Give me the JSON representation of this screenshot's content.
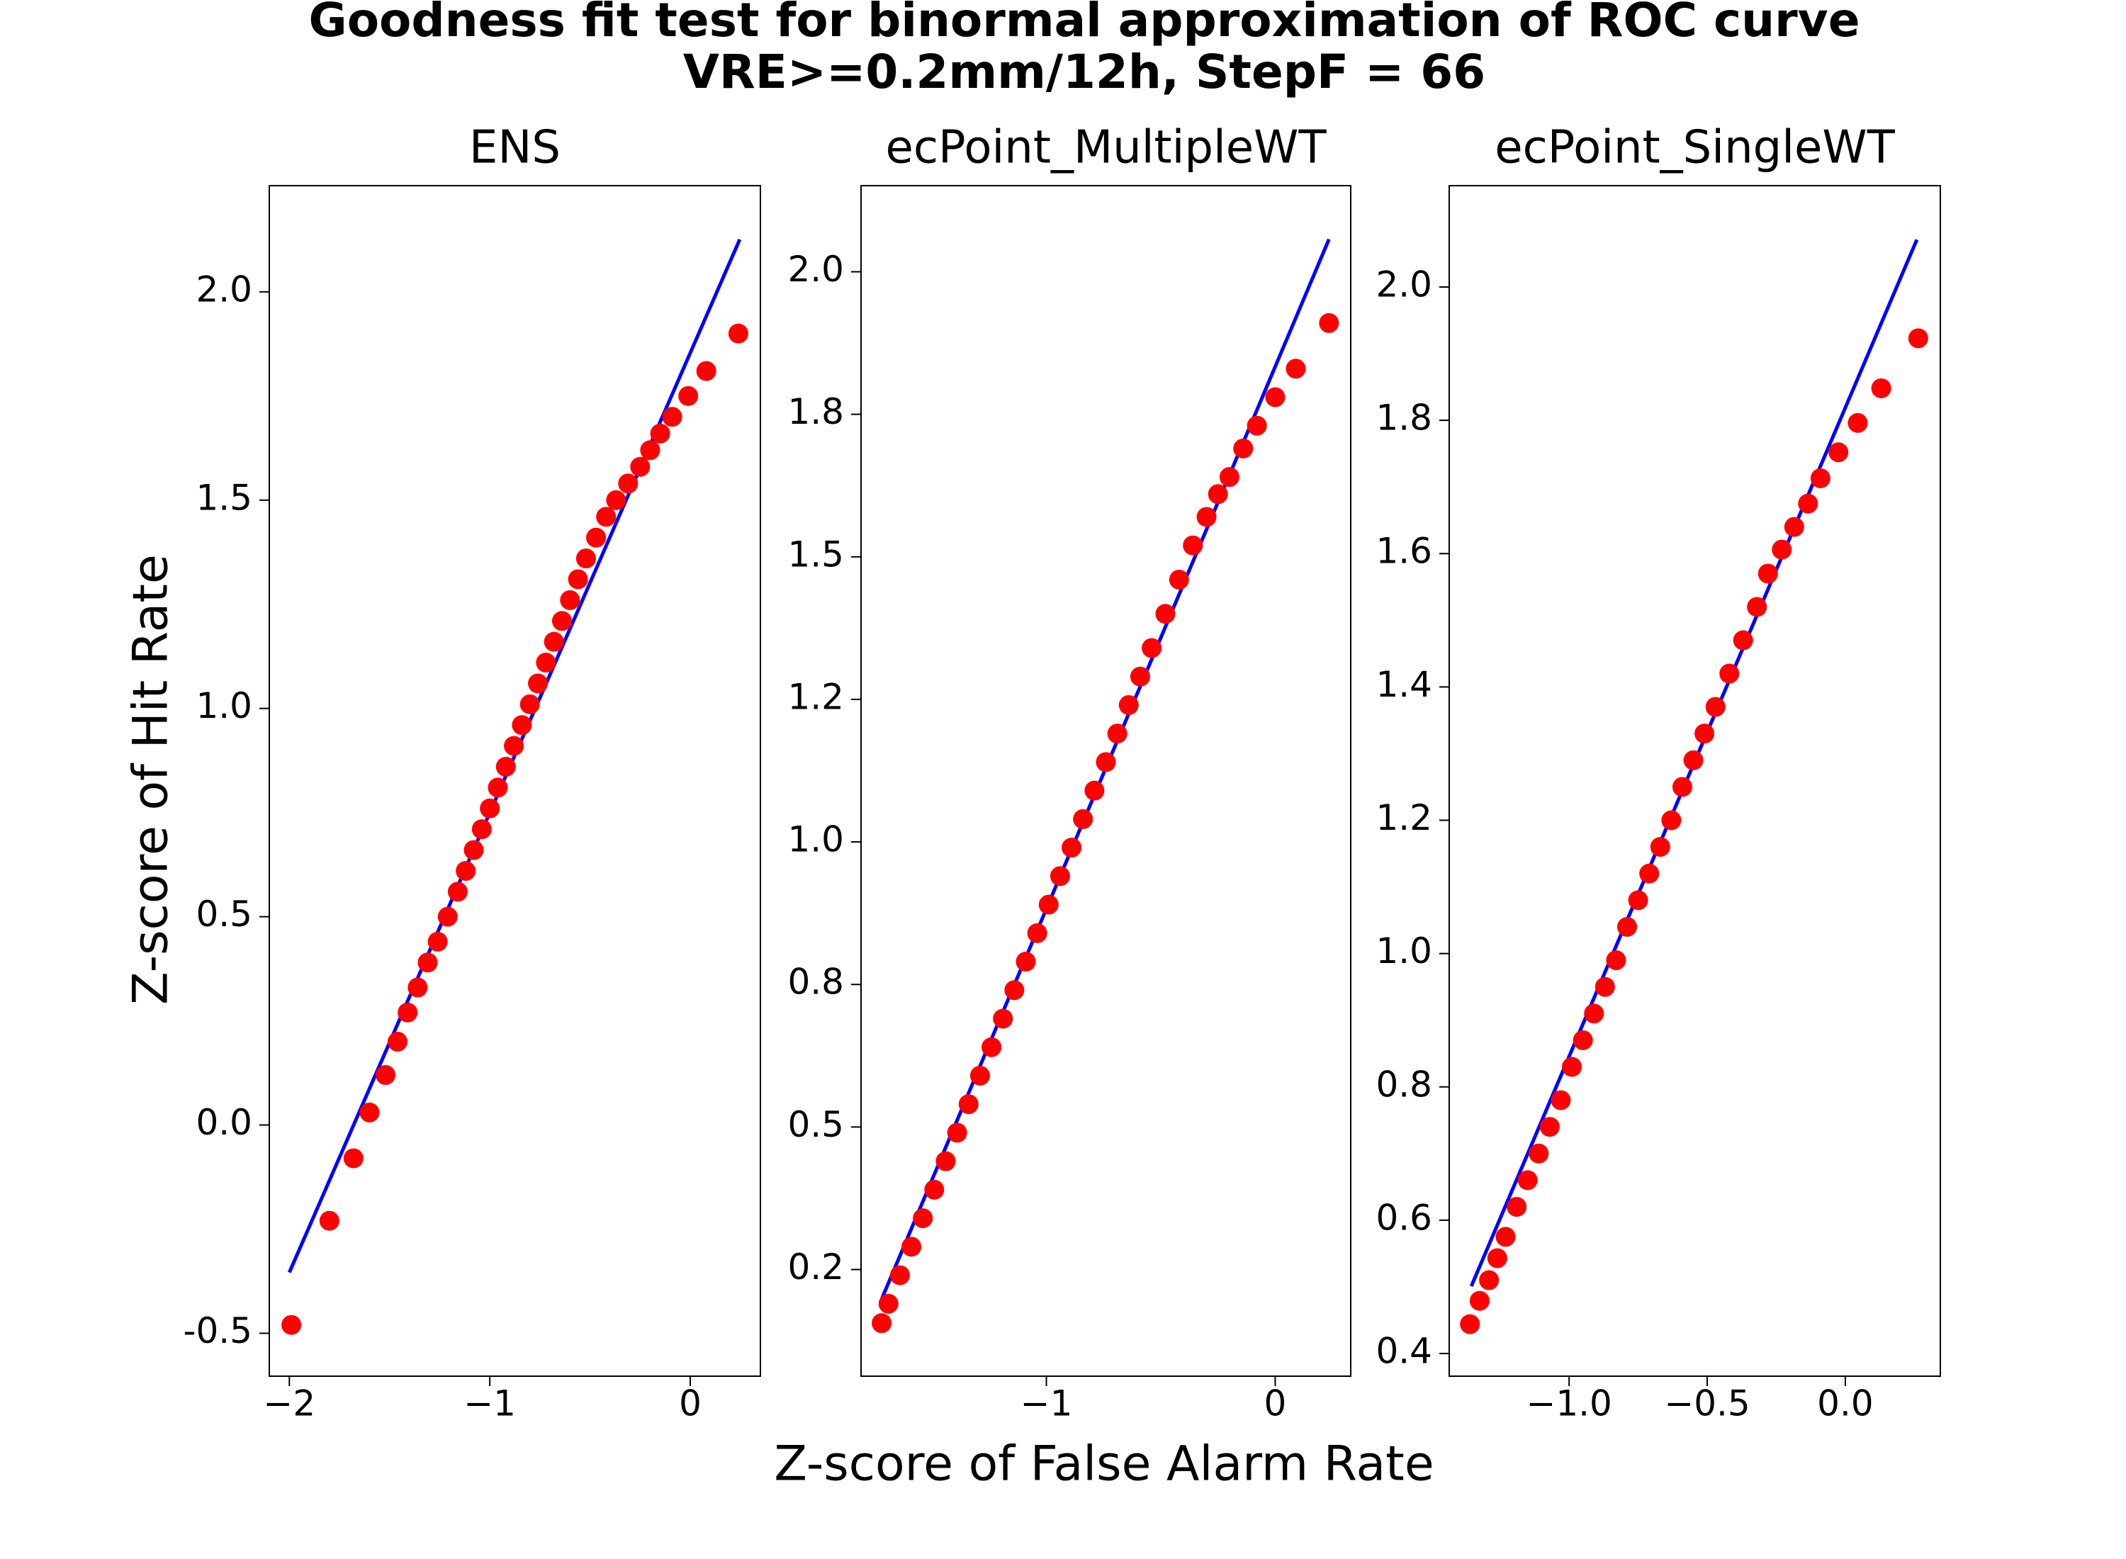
{
  "title": "Goodness fit test for binormal approximation of ROC curve",
  "subtitle": "VRE>=0.2mm/12h, StepF = 66",
  "x_label": "Z-score of False Alarm Rate",
  "y_label": "Z-score of Hit Rate",
  "chart_data": [
    {
      "type": "scatter",
      "title": "ENS",
      "xlim": [
        -2.1,
        0.35
      ],
      "ylim": [
        -0.603,
        2.255
      ],
      "xticks": [
        {
          "value": -2,
          "label": "−2"
        },
        {
          "value": -1,
          "label": "−1"
        },
        0
      ],
      "yticks": [
        {
          "value": -0.5,
          "label": "-0.5"
        },
        {
          "value": 0,
          "label": "0.0"
        },
        0.5,
        {
          "value": 1,
          "label": "1.0"
        },
        1.5,
        {
          "value": 2,
          "label": "2.0"
        }
      ],
      "series": [
        {
          "type": "line",
          "color": "#0000ff",
          "x": [
            -2.0,
            0.247
          ],
          "values": [
            -0.354,
            2.126
          ]
        },
        {
          "type": "scatter",
          "color": "#ff0000",
          "x": [
            -1.99,
            -1.8,
            -1.68,
            -1.6,
            -1.52,
            -1.46,
            -1.41,
            -1.36,
            -1.31,
            -1.26,
            -1.21,
            -1.16,
            -1.12,
            -1.08,
            -1.04,
            -1.0,
            -0.96,
            -0.92,
            -0.88,
            -0.84,
            -0.8,
            -0.76,
            -0.72,
            -0.68,
            -0.64,
            -0.6,
            -0.56,
            -0.52,
            -0.47,
            -0.42,
            -0.37,
            -0.31,
            -0.25,
            -0.2,
            -0.15,
            -0.09,
            -0.01,
            0.08,
            0.24
          ],
          "values": [
            -0.48,
            -0.23,
            -0.08,
            0.03,
            0.12,
            0.2,
            0.27,
            0.33,
            0.39,
            0.44,
            0.5,
            0.56,
            0.61,
            0.66,
            0.71,
            0.76,
            0.81,
            0.86,
            0.91,
            0.96,
            1.01,
            1.06,
            1.11,
            1.16,
            1.21,
            1.26,
            1.31,
            1.36,
            1.41,
            1.46,
            1.5,
            1.54,
            1.58,
            1.62,
            1.66,
            1.7,
            1.75,
            1.81,
            1.9
          ]
        }
      ]
    },
    {
      "type": "scatter",
      "title": "ecPoint_MultipleWT",
      "xlim": [
        -1.81,
        0.33
      ],
      "ylim": [
        0.063,
        2.151
      ],
      "xticks": [
        {
          "value": -1,
          "label": "−1"
        },
        0
      ],
      "yticks": [
        {
          "value": 0.25,
          "label": "0.2"
        },
        0.5,
        {
          "value": 0.75,
          "label": "0.8"
        },
        {
          "value": 1,
          "label": "1.0"
        },
        {
          "value": 1.25,
          "label": "1.2"
        },
        1.5,
        {
          "value": 1.75,
          "label": "1.8"
        },
        {
          "value": 2,
          "label": "2.0"
        }
      ],
      "series": [
        {
          "type": "line",
          "color": "#0000ff",
          "x": [
            -1.72,
            0.235
          ],
          "values": [
            0.198,
            2.057
          ]
        },
        {
          "type": "scatter",
          "color": "#ff0000",
          "x": [
            -1.72,
            -1.69,
            -1.64,
            -1.59,
            -1.54,
            -1.49,
            -1.44,
            -1.39,
            -1.34,
            -1.29,
            -1.24,
            -1.19,
            -1.14,
            -1.09,
            -1.04,
            -0.99,
            -0.94,
            -0.89,
            -0.84,
            -0.79,
            -0.74,
            -0.69,
            -0.64,
            -0.59,
            -0.54,
            -0.48,
            -0.42,
            -0.36,
            -0.3,
            -0.25,
            -0.2,
            -0.14,
            -0.08,
            0.0,
            0.09,
            0.235
          ],
          "values": [
            0.156,
            0.19,
            0.24,
            0.29,
            0.34,
            0.39,
            0.44,
            0.49,
            0.54,
            0.59,
            0.64,
            0.69,
            0.74,
            0.79,
            0.84,
            0.89,
            0.94,
            0.99,
            1.04,
            1.09,
            1.14,
            1.19,
            1.24,
            1.29,
            1.34,
            1.4,
            1.46,
            1.52,
            1.57,
            1.61,
            1.64,
            1.69,
            1.73,
            1.78,
            1.83,
            1.91
          ]
        }
      ]
    },
    {
      "type": "scatter",
      "title": "ecPoint_SingleWT",
      "xlim": [
        -1.434,
        0.344
      ],
      "ylim": [
        0.366,
        2.152
      ],
      "xticks": [
        {
          "value": -1,
          "label": "−1.0"
        },
        {
          "value": -0.5,
          "label": "−0.5"
        },
        {
          "value": 0,
          "label": "0.0"
        }
      ],
      "yticks": [
        0.4,
        0.6,
        0.8,
        {
          "value": 1,
          "label": "1.0"
        },
        1.2,
        1.4,
        1.6,
        1.8,
        {
          "value": 2,
          "label": "2.0"
        }
      ],
      "series": [
        {
          "type": "line",
          "color": "#0000ff",
          "x": [
            -1.354,
            0.259
          ],
          "values": [
            0.501,
            2.071
          ]
        },
        {
          "type": "scatter",
          "color": "#ff0000",
          "x": [
            -1.359,
            -1.324,
            -1.29,
            -1.26,
            -1.23,
            -1.19,
            -1.15,
            -1.11,
            -1.07,
            -1.03,
            -0.99,
            -0.95,
            -0.91,
            -0.87,
            -0.83,
            -0.79,
            -0.75,
            -0.71,
            -0.67,
            -0.63,
            -0.59,
            -0.55,
            -0.51,
            -0.47,
            -0.42,
            -0.37,
            -0.32,
            -0.28,
            -0.23,
            -0.185,
            -0.135,
            -0.09,
            -0.025,
            0.045,
            0.13,
            0.264
          ],
          "values": [
            0.444,
            0.479,
            0.51,
            0.543,
            0.575,
            0.62,
            0.66,
            0.7,
            0.74,
            0.78,
            0.83,
            0.87,
            0.91,
            0.95,
            0.99,
            1.04,
            1.08,
            1.12,
            1.16,
            1.2,
            1.25,
            1.29,
            1.33,
            1.37,
            1.42,
            1.47,
            1.52,
            1.57,
            1.606,
            1.64,
            1.675,
            1.713,
            1.752,
            1.796,
            1.848,
            1.923
          ]
        }
      ]
    }
  ]
}
